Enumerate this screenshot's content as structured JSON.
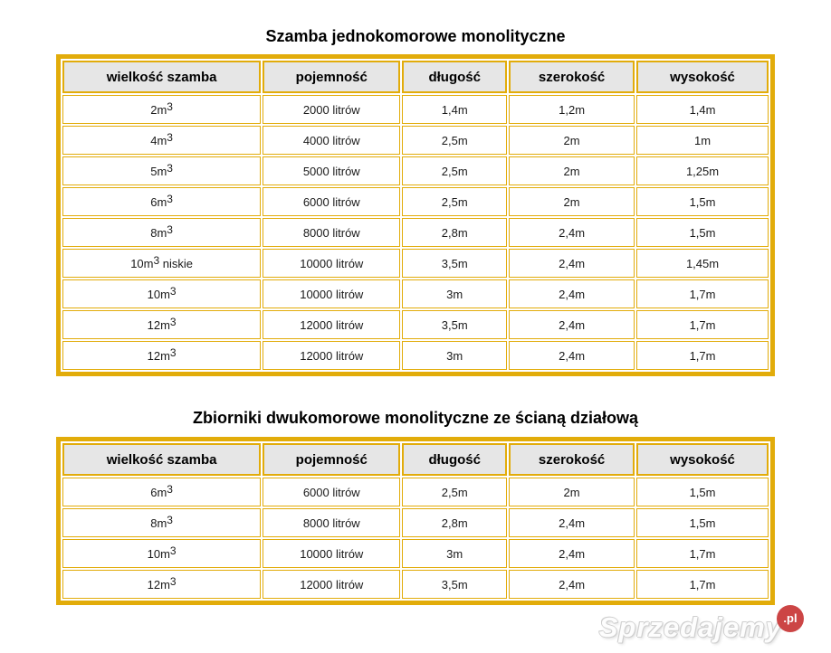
{
  "colors": {
    "gold_border": "#e2ac0a",
    "header_background": "#e6e6e6",
    "watermark_red": "#cc4545"
  },
  "tables": [
    {
      "title": "Szamba jednokomorowe monolityczne",
      "headers": [
        "wielkość szamba",
        "pojemność",
        "długość",
        "szerokość",
        "wysokość"
      ],
      "rows": [
        {
          "size_base": "2m",
          "size_sup": "3",
          "size_note": "",
          "capacity": "2000 litrów",
          "length": "1,4m",
          "width": "1,2m",
          "height": "1,4m"
        },
        {
          "size_base": "4m",
          "size_sup": "3",
          "size_note": "",
          "capacity": "4000 litrów",
          "length": "2,5m",
          "width": "2m",
          "height": "1m"
        },
        {
          "size_base": "5m",
          "size_sup": "3",
          "size_note": "",
          "capacity": "5000 litrów",
          "length": "2,5m",
          "width": "2m",
          "height": "1,25m"
        },
        {
          "size_base": "6m",
          "size_sup": "3",
          "size_note": "",
          "capacity": "6000 litrów",
          "length": "2,5m",
          "width": "2m",
          "height": "1,5m"
        },
        {
          "size_base": "8m",
          "size_sup": "3",
          "size_note": "",
          "capacity": "8000 litrów",
          "length": "2,8m",
          "width": "2,4m",
          "height": "1,5m"
        },
        {
          "size_base": "10m",
          "size_sup": "3",
          "size_note": "niskie",
          "capacity": "10000 litrów",
          "length": "3,5m",
          "width": "2,4m",
          "height": "1,45m"
        },
        {
          "size_base": "10m",
          "size_sup": "3",
          "size_note": "",
          "capacity": "10000 litrów",
          "length": "3m",
          "width": "2,4m",
          "height": "1,7m"
        },
        {
          "size_base": "12m",
          "size_sup": "3",
          "size_note": "",
          "capacity": "12000 litrów",
          "length": "3,5m",
          "width": "2,4m",
          "height": "1,7m"
        },
        {
          "size_base": "12m",
          "size_sup": "3",
          "size_note": "",
          "capacity": "12000 litrów",
          "length": "3m",
          "width": "2,4m",
          "height": "1,7m"
        }
      ]
    },
    {
      "title": "Zbiorniki dwukomorowe monolityczne ze ścianą działową",
      "headers": [
        "wielkość szamba",
        "pojemność",
        "długość",
        "szerokość",
        "wysokość"
      ],
      "rows": [
        {
          "size_base": "6m",
          "size_sup": "3",
          "size_note": "",
          "capacity": "6000 litrów",
          "length": "2,5m",
          "width": "2m",
          "height": "1,5m"
        },
        {
          "size_base": "8m",
          "size_sup": "3",
          "size_note": "",
          "capacity": "8000 litrów",
          "length": "2,8m",
          "width": "2,4m",
          "height": "1,5m"
        },
        {
          "size_base": "10m",
          "size_sup": "3",
          "size_note": "",
          "capacity": "10000 litrów",
          "length": "3m",
          "width": "2,4m",
          "height": "1,7m"
        },
        {
          "size_base": "12m",
          "size_sup": "3",
          "size_note": "",
          "capacity": "12000 litrów",
          "length": "3,5m",
          "width": "2,4m",
          "height": "1,7m"
        }
      ]
    }
  ],
  "watermark": {
    "name": "Sprzedajemy",
    "tld": ".pl"
  }
}
